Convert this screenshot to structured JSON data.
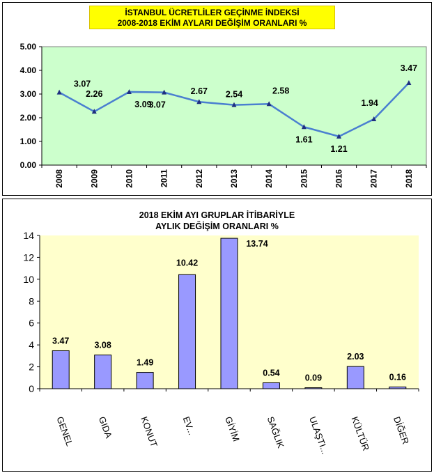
{
  "chart_data": [
    {
      "type": "line",
      "title": "İSTANBUL ÜCRETLİLER GEÇİNME İNDEKSİ",
      "subtitle": "2008-2018 EKİM AYLARI DEĞİŞİM ORANLARI %",
      "x": [
        "2008",
        "2009",
        "2010",
        "2011",
        "2012",
        "2013",
        "2014",
        "2015",
        "2016",
        "2017",
        "2018"
      ],
      "series": [
        {
          "values": [
            3.07,
            2.26,
            3.09,
            3.07,
            2.67,
            2.54,
            2.58,
            1.61,
            1.21,
            1.94,
            3.47
          ]
        }
      ],
      "data_labels": [
        "3.07",
        "2.26",
        "3.09",
        "3.07",
        "2.67",
        "2.54",
        "2.58",
        "1.61",
        "1.21",
        "1.94",
        "3.47"
      ],
      "yticks": [
        "0.00",
        "1.00",
        "2.00",
        "3.00",
        "4.00",
        "5.00"
      ],
      "ylim": [
        0,
        5
      ],
      "grid": false,
      "colors": {
        "line": "#4a7fd0",
        "plot_bg": "#ccffcc",
        "title_bg": "#ffff00"
      }
    },
    {
      "type": "bar",
      "title": "2018 EKİM AYI GRUPLAR İTİBARİYLE",
      "subtitle": "AYLIK DEĞİŞİM ORANLARI %",
      "categories": [
        "GENEL",
        "GIDA",
        "KONUT",
        "EV...",
        "GİYİM",
        "SAĞLIK",
        "ULAŞTI...",
        "KÜLTÜR",
        "DİĞER"
      ],
      "values": [
        3.47,
        3.08,
        1.49,
        10.42,
        13.74,
        0.54,
        0.09,
        2.03,
        0.16
      ],
      "data_labels": [
        "3.47",
        "3.08",
        "1.49",
        "10.42",
        "13.74",
        "0.54",
        "0.09",
        "2.03",
        "0.16"
      ],
      "yticks": [
        "0",
        "2",
        "4",
        "6",
        "8",
        "10",
        "12",
        "14"
      ],
      "ylim": [
        0,
        14
      ],
      "grid": false,
      "colors": {
        "bar": "#9999ff",
        "plot_bg": "#ffffcc"
      }
    }
  ]
}
